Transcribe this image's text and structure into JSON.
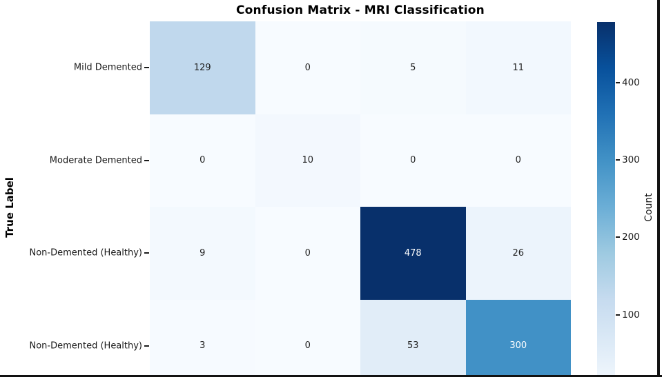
{
  "title": "Confusion Matrix - MRI Classification",
  "ylabel": "True Label",
  "colorbar": {
    "label": "Count",
    "ticks": [
      100,
      200,
      300,
      400
    ],
    "vmin": 0,
    "vmax": 478
  },
  "colors": {
    "annotation_dark": "#1f1f1f",
    "annotation_light": "#ffffff",
    "colormap_stops": [
      {
        "t": 0.0,
        "color": "#f7fbff"
      },
      {
        "t": 0.125,
        "color": "#deebf7"
      },
      {
        "t": 0.25,
        "color": "#c6dbef"
      },
      {
        "t": 0.375,
        "color": "#9ecae1"
      },
      {
        "t": 0.5,
        "color": "#6baed6"
      },
      {
        "t": 0.625,
        "color": "#4292c6"
      },
      {
        "t": 0.75,
        "color": "#2171b5"
      },
      {
        "t": 0.875,
        "color": "#08519c"
      },
      {
        "t": 1.0,
        "color": "#08306b"
      }
    ]
  },
  "chart_data": {
    "type": "heatmap",
    "title": "Confusion Matrix - MRI Classification",
    "ylabel": "True Label",
    "row_labels": [
      "Mild Demented",
      "Moderate Demented",
      "Non-Demented (Healthy)",
      "Non-Demented (Healthy)"
    ],
    "values": [
      [
        129,
        0,
        5,
        11
      ],
      [
        0,
        10,
        0,
        0
      ],
      [
        9,
        0,
        478,
        26
      ],
      [
        3,
        0,
        53,
        300
      ]
    ],
    "colormap": "Blues",
    "colorbar_label": "Count",
    "colorbar_ticks": [
      100,
      200,
      300,
      400
    ],
    "scale_min": 0,
    "scale_max": 478,
    "legend_position": "right-colorbar",
    "grid": false,
    "note_layout": "bottom x-axis labels clipped out of view"
  }
}
